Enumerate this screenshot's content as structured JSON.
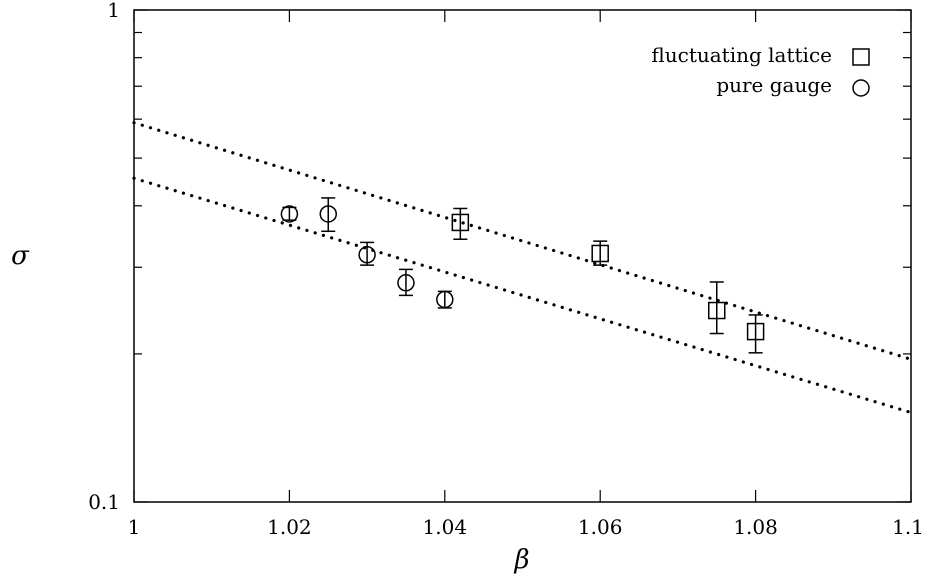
{
  "chart_data": {
    "type": "scatter",
    "title": "",
    "xlabel": "β",
    "ylabel": "σ",
    "xlim": [
      1,
      1.1
    ],
    "ylim": [
      0.1,
      1
    ],
    "yscale": "log",
    "grid": false,
    "legend_position": "top-right",
    "x_ticks": [
      1,
      1.02,
      1.04,
      1.06,
      1.08,
      1.1
    ],
    "x_tick_labels": [
      "1",
      "1.02",
      "1.04",
      "1.06",
      "1.08",
      "1.1"
    ],
    "y_tick_labels": [
      "0.1",
      "1"
    ],
    "series": [
      {
        "name": "fluctuating lattice",
        "marker": "square",
        "points": [
          {
            "x": 1.042,
            "y": 0.37,
            "ylo": 0.342,
            "yhi": 0.395
          },
          {
            "x": 1.06,
            "y": 0.32,
            "ylo": 0.303,
            "yhi": 0.339
          },
          {
            "x": 1.075,
            "y": 0.245,
            "ylo": 0.22,
            "yhi": 0.28
          },
          {
            "x": 1.08,
            "y": 0.222,
            "ylo": 0.201,
            "yhi": 0.24
          }
        ]
      },
      {
        "name": "pure gauge",
        "marker": "circle",
        "points": [
          {
            "x": 1.02,
            "y": 0.385,
            "ylo": 0.374,
            "yhi": 0.397
          },
          {
            "x": 1.025,
            "y": 0.385,
            "ylo": 0.355,
            "yhi": 0.415
          },
          {
            "x": 1.03,
            "y": 0.318,
            "ylo": 0.303,
            "yhi": 0.337
          },
          {
            "x": 1.035,
            "y": 0.279,
            "ylo": 0.263,
            "yhi": 0.297
          },
          {
            "x": 1.04,
            "y": 0.258,
            "ylo": 0.248,
            "yhi": 0.268
          }
        ]
      }
    ],
    "fit_lines": [
      {
        "style": "dotted",
        "x": [
          1,
          1.1
        ],
        "y": [
          0.59,
          0.195
        ]
      },
      {
        "style": "dotted",
        "x": [
          1,
          1.1
        ],
        "y": [
          0.455,
          0.152
        ]
      }
    ]
  }
}
